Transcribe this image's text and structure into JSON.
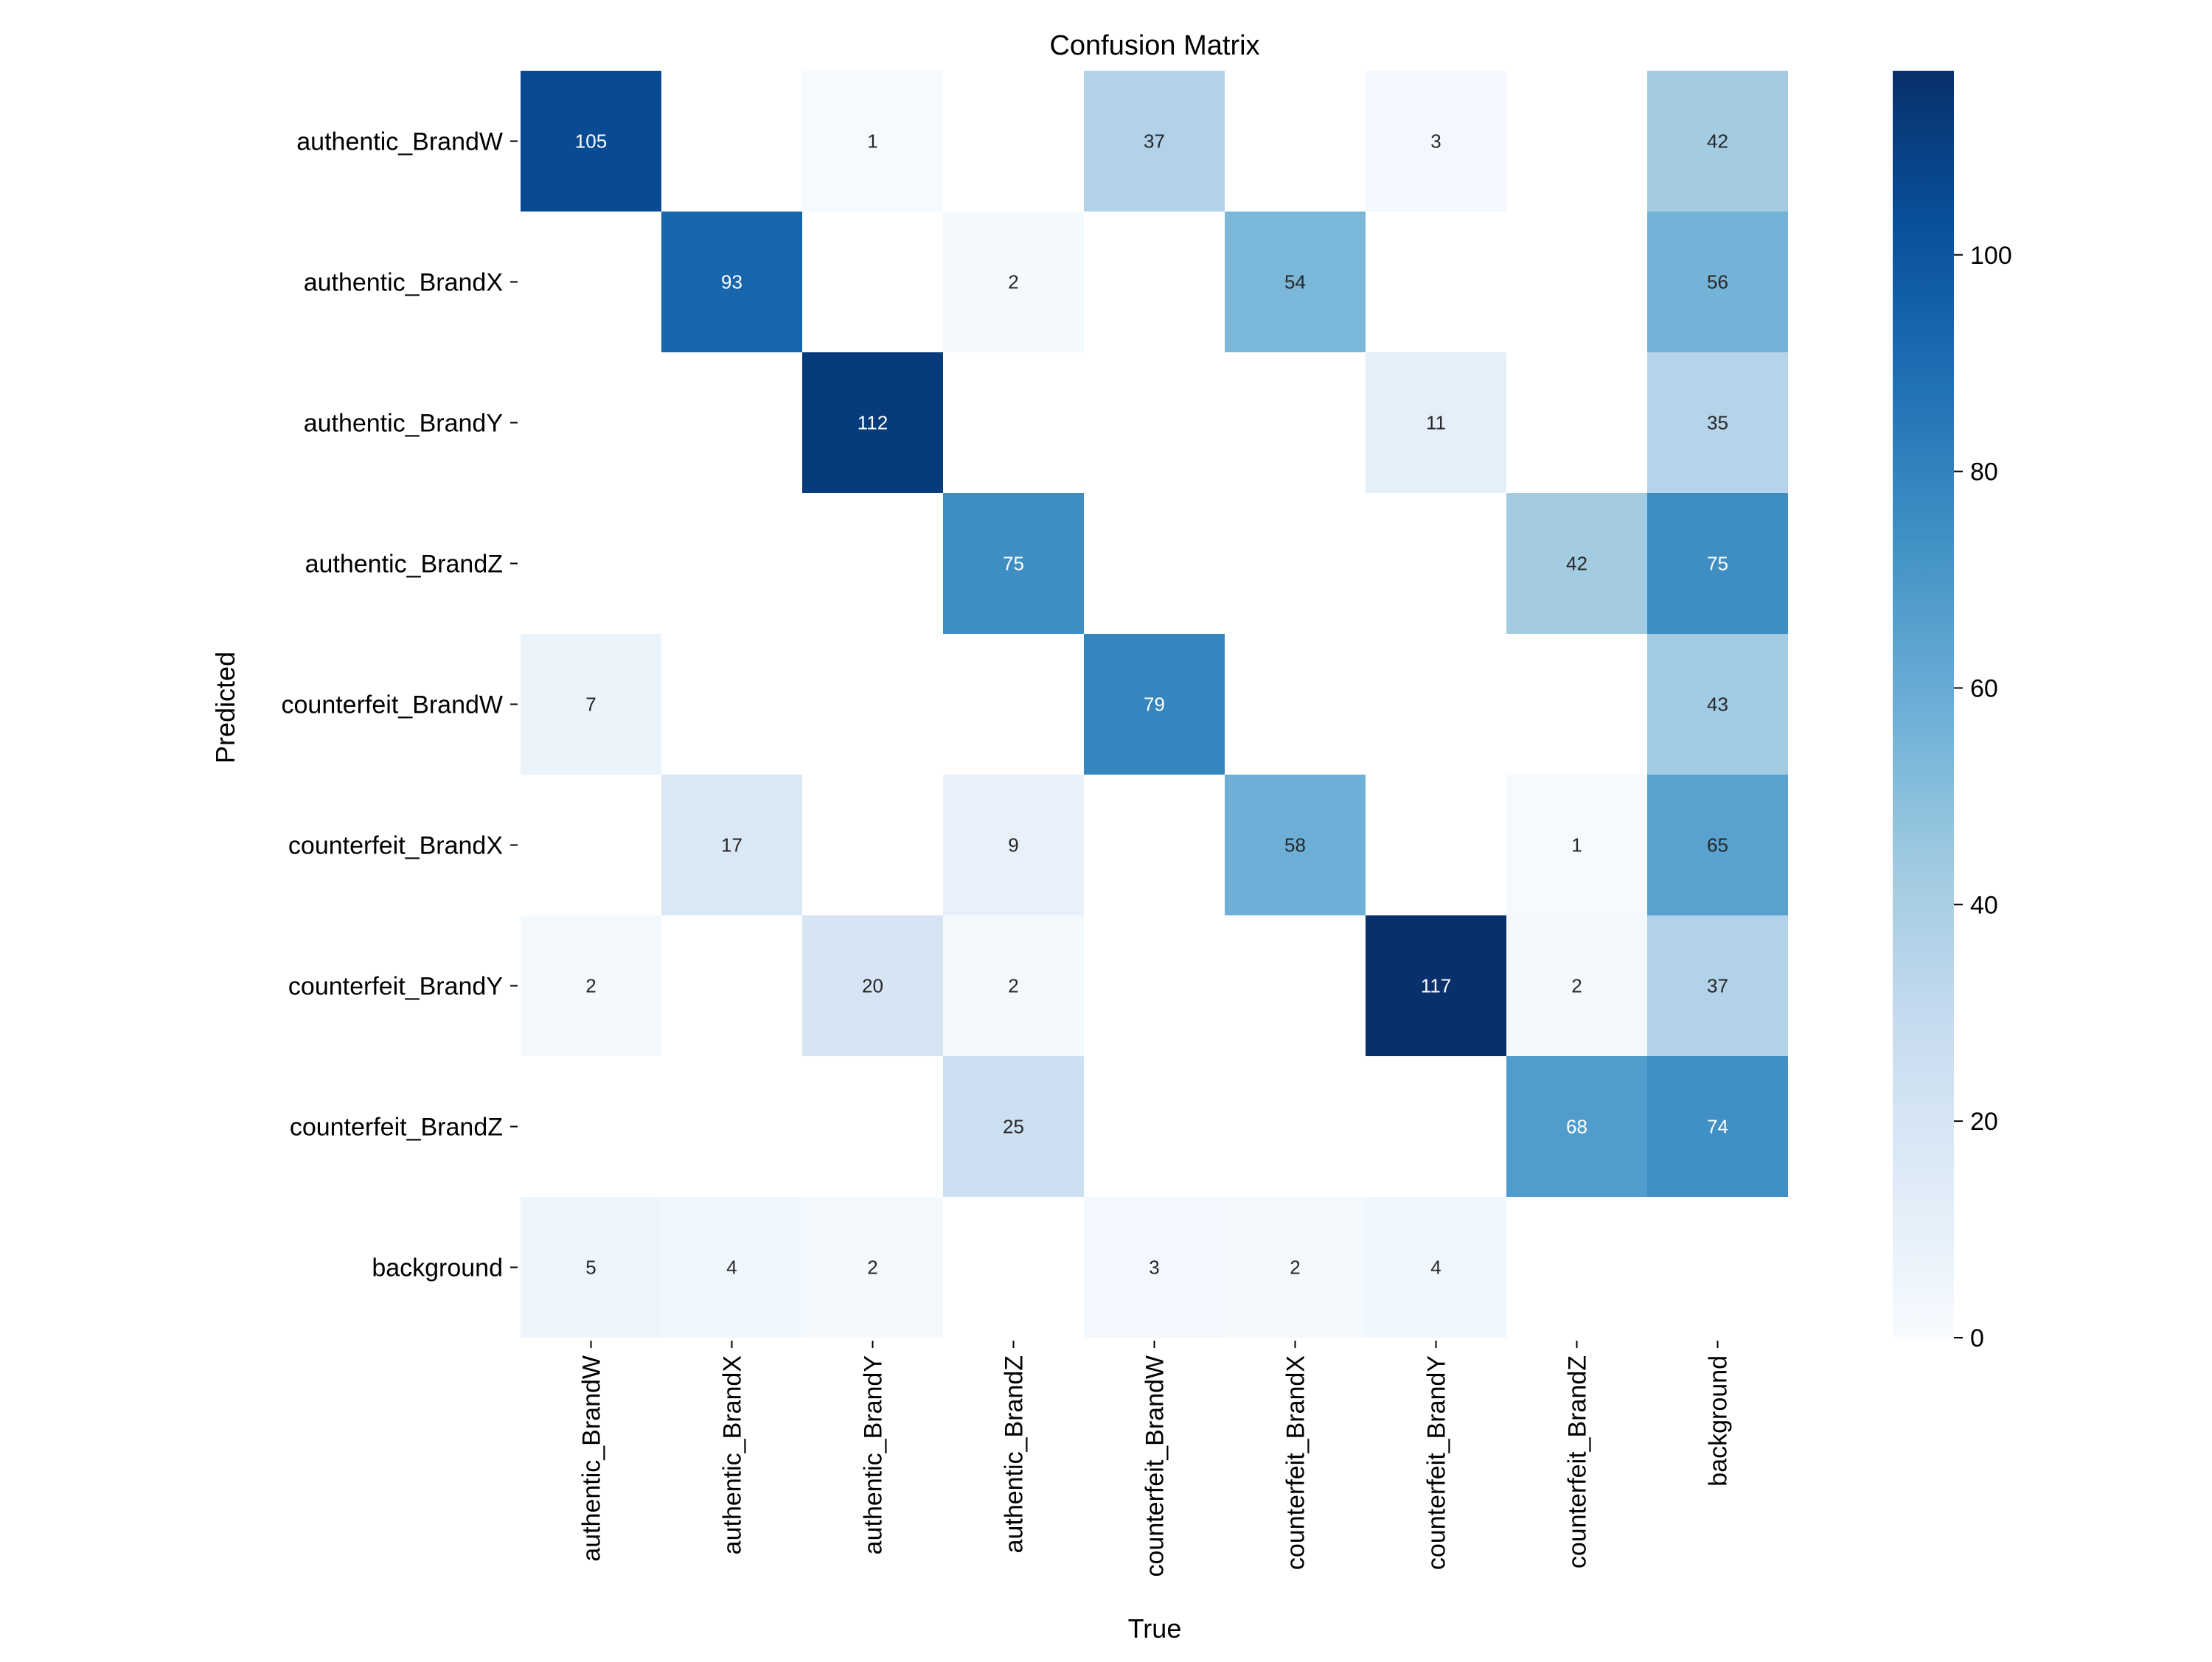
{
  "chart_data": {
    "type": "heatmap",
    "title": "Confusion Matrix",
    "xlabel": "True",
    "ylabel": "Predicted",
    "rows": [
      "authentic_BrandW",
      "authentic_BrandX",
      "authentic_BrandY",
      "authentic_BrandZ",
      "counterfeit_BrandW",
      "counterfeit_BrandX",
      "counterfeit_BrandY",
      "counterfeit_BrandZ",
      "background"
    ],
    "columns": [
      "authentic_BrandW",
      "authentic_BrandX",
      "authentic_BrandY",
      "authentic_BrandZ",
      "counterfeit_BrandW",
      "counterfeit_BrandX",
      "counterfeit_BrandY",
      "counterfeit_BrandZ",
      "background"
    ],
    "values": [
      [
        105,
        null,
        1,
        null,
        37,
        null,
        3,
        null,
        42
      ],
      [
        null,
        93,
        null,
        2,
        null,
        54,
        null,
        null,
        56
      ],
      [
        null,
        null,
        112,
        null,
        null,
        null,
        11,
        null,
        35
      ],
      [
        null,
        null,
        null,
        75,
        null,
        null,
        null,
        42,
        75
      ],
      [
        7,
        null,
        null,
        null,
        79,
        null,
        null,
        null,
        43
      ],
      [
        null,
        17,
        null,
        9,
        null,
        58,
        null,
        1,
        65
      ],
      [
        2,
        null,
        20,
        2,
        null,
        null,
        117,
        2,
        37
      ],
      [
        null,
        null,
        null,
        25,
        null,
        null,
        null,
        68,
        74
      ],
      [
        5,
        4,
        2,
        null,
        3,
        2,
        4,
        null,
        null
      ]
    ],
    "colorbar": {
      "vmin": 0,
      "vmax": 117,
      "ticks": [
        0,
        20,
        40,
        60,
        80,
        100
      ],
      "colormap": "Blues",
      "colormap_stops": [
        "#f7fbff",
        "#deebf7",
        "#c6dbef",
        "#9ecae1",
        "#6baed6",
        "#4292c6",
        "#2171b5",
        "#08519c",
        "#08306b"
      ]
    },
    "legend": "colorbar-right",
    "grid": false
  }
}
